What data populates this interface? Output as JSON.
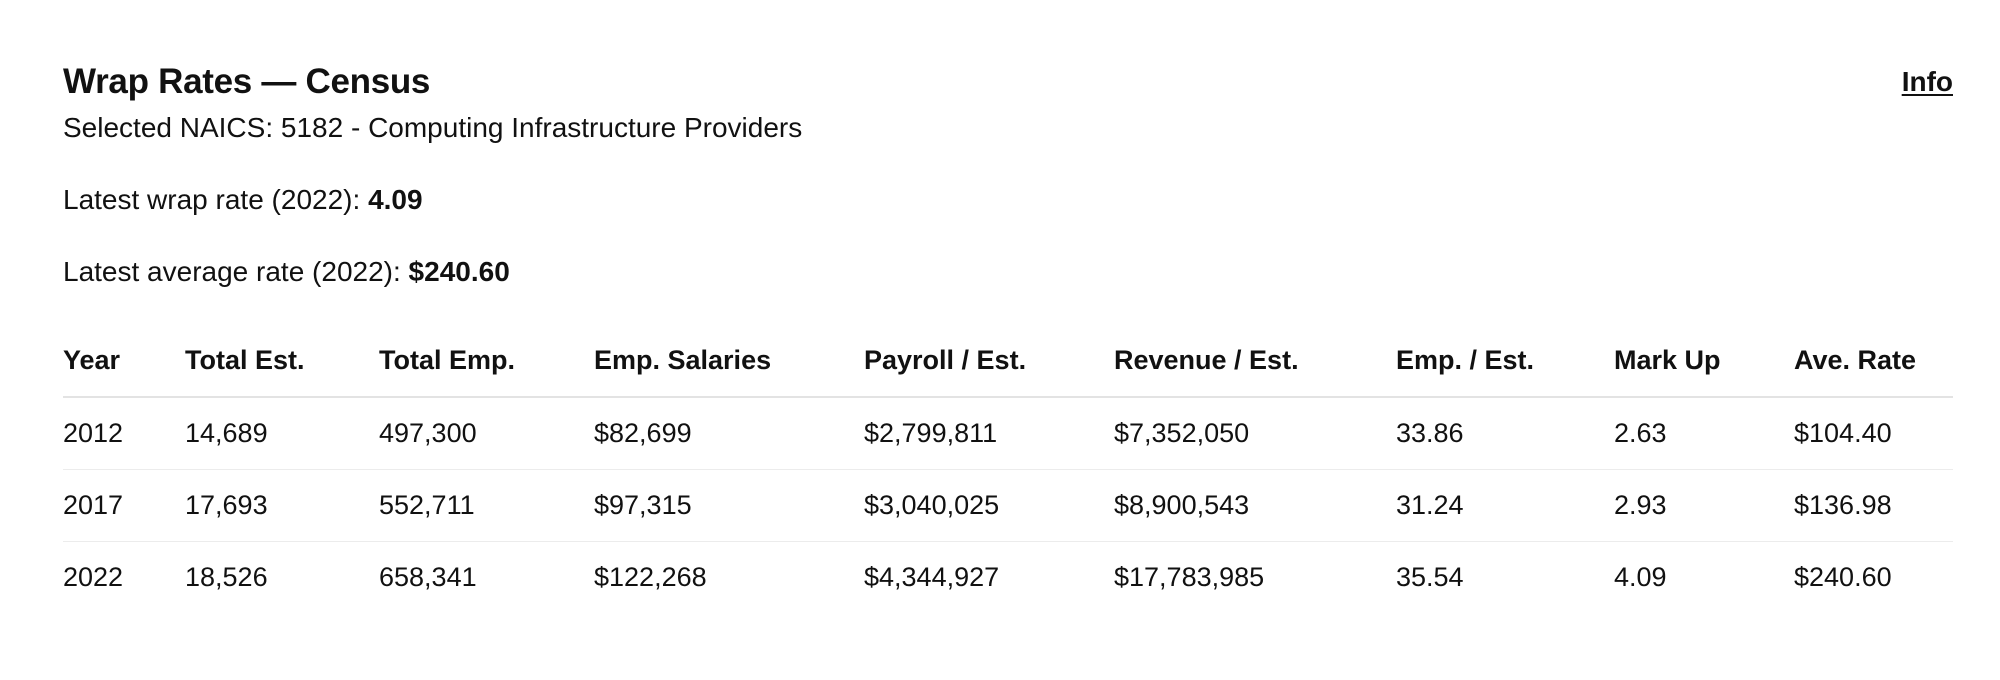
{
  "title": "Wrap Rates — Census",
  "info_link": "Info",
  "naics": {
    "label": "Selected NAICS:",
    "value": "5182 - Computing Infrastructure Providers"
  },
  "latest_wrap": {
    "label": "Latest wrap rate (2022):",
    "value": "4.09"
  },
  "latest_average": {
    "label": "Latest average rate (2022):",
    "value": "$240.60"
  },
  "table": {
    "columns": [
      "Year",
      "Total Est.",
      "Total Emp.",
      "Emp. Salaries",
      "Payroll / Est.",
      "Revenue / Est.",
      "Emp. / Est.",
      "Mark Up",
      "Ave. Rate"
    ],
    "rows": [
      [
        "2012",
        "14,689",
        "497,300",
        "$82,699",
        "$2,799,811",
        "$7,352,050",
        "33.86",
        "2.63",
        "$104.40"
      ],
      [
        "2017",
        "17,693",
        "552,711",
        "$97,315",
        "$3,040,025",
        "$8,900,543",
        "31.24",
        "2.93",
        "$136.98"
      ],
      [
        "2022",
        "18,526",
        "658,341",
        "$122,268",
        "$4,344,927",
        "$17,783,985",
        "35.54",
        "4.09",
        "$240.60"
      ]
    ]
  }
}
